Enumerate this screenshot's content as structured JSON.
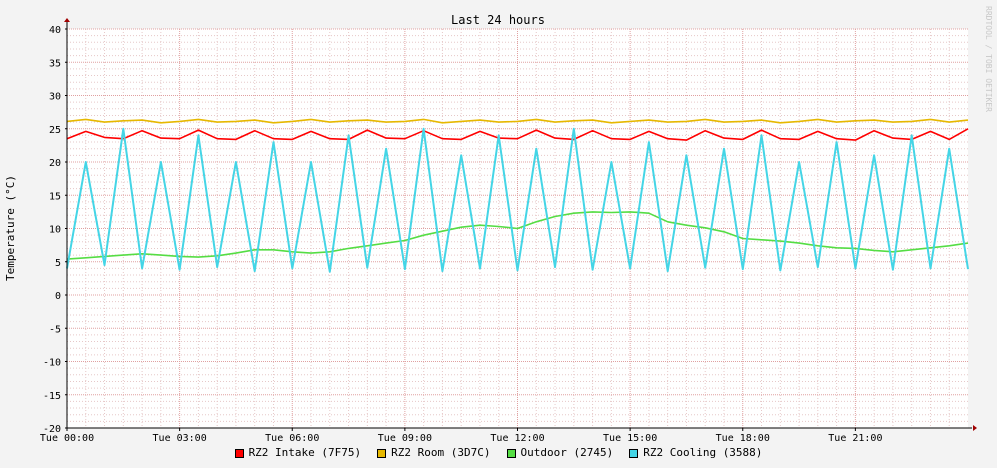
{
  "watermark": "RRDTOOL / TOBI OETIKER",
  "chart_data": {
    "type": "line",
    "title": "Last 24 hours",
    "xlabel": "",
    "ylabel": "Temperature (°C)",
    "ylim": [
      -20,
      40
    ],
    "yticks": [
      40,
      35,
      30,
      25,
      20,
      15,
      10,
      5,
      0,
      -5,
      -10,
      -15,
      -20
    ],
    "xlim": [
      0,
      24
    ],
    "xticks": [
      {
        "hour": 0,
        "label": "Tue 00:00"
      },
      {
        "hour": 3,
        "label": "Tue 03:00"
      },
      {
        "hour": 6,
        "label": "Tue 06:00"
      },
      {
        "hour": 9,
        "label": "Tue 09:00"
      },
      {
        "hour": 12,
        "label": "Tue 12:00"
      },
      {
        "hour": 15,
        "label": "Tue 15:00"
      },
      {
        "hour": 18,
        "label": "Tue 18:00"
      },
      {
        "hour": 21,
        "label": "Tue 21:00"
      }
    ],
    "grid": true,
    "legend_position": "bottom",
    "x": [
      0,
      0.5,
      1,
      1.5,
      2,
      2.5,
      3,
      3.5,
      4,
      4.5,
      5,
      5.5,
      6,
      6.5,
      7,
      7.5,
      8,
      8.5,
      9,
      9.5,
      10,
      10.5,
      11,
      11.5,
      12,
      12.5,
      13,
      13.5,
      14,
      14.5,
      15,
      15.5,
      16,
      16.5,
      17,
      17.5,
      18,
      18.5,
      19,
      19.5,
      20,
      20.5,
      21,
      21.5,
      22,
      22.5,
      23,
      23.5,
      24
    ],
    "series": [
      {
        "name": "RZ2 Intake (7F75)",
        "color": "#ff0000",
        "values": [
          23.5,
          24.6,
          23.7,
          23.5,
          24.7,
          23.6,
          23.5,
          24.8,
          23.5,
          23.4,
          24.7,
          23.5,
          23.4,
          24.6,
          23.5,
          23.4,
          24.8,
          23.6,
          23.5,
          24.7,
          23.5,
          23.4,
          24.6,
          23.6,
          23.5,
          24.8,
          23.6,
          23.4,
          24.7,
          23.5,
          23.4,
          24.6,
          23.5,
          23.3,
          24.7,
          23.6,
          23.4,
          24.8,
          23.5,
          23.4,
          24.6,
          23.5,
          23.3,
          24.7,
          23.6,
          23.4,
          24.6,
          23.4,
          25.0
        ]
      },
      {
        "name": "RZ2 Room (3D7C)",
        "color": "#e6b800",
        "values": [
          26.1,
          26.4,
          26.0,
          26.2,
          26.3,
          25.9,
          26.1,
          26.4,
          26.0,
          26.1,
          26.3,
          25.9,
          26.1,
          26.4,
          26.0,
          26.2,
          26.3,
          26.0,
          26.1,
          26.4,
          25.9,
          26.1,
          26.3,
          26.0,
          26.1,
          26.4,
          26.0,
          26.2,
          26.3,
          25.9,
          26.1,
          26.3,
          26.0,
          26.1,
          26.4,
          26.0,
          26.1,
          26.3,
          25.9,
          26.1,
          26.4,
          26.0,
          26.2,
          26.3,
          26.0,
          26.1,
          26.4,
          26.0,
          26.3
        ]
      },
      {
        "name": "Outdoor (2745)",
        "color": "#55dd44",
        "values": [
          5.4,
          5.6,
          5.8,
          6.0,
          6.2,
          6.0,
          5.8,
          5.7,
          5.9,
          6.3,
          6.8,
          6.8,
          6.5,
          6.3,
          6.5,
          7.0,
          7.4,
          7.8,
          8.2,
          9.0,
          9.6,
          10.2,
          10.5,
          10.3,
          10.0,
          11.0,
          11.8,
          12.3,
          12.5,
          12.4,
          12.5,
          12.3,
          11.0,
          10.5,
          10.1,
          9.5,
          8.5,
          8.3,
          8.1,
          7.8,
          7.4,
          7.1,
          7.0,
          6.7,
          6.5,
          6.8,
          7.1,
          7.4,
          7.8
        ]
      },
      {
        "name": "RZ2 Cooling (3588)",
        "color": "#44d5e6",
        "values": [
          4.0,
          20.0,
          4.5,
          25.0,
          4.0,
          20.0,
          3.8,
          24.0,
          4.2,
          20.0,
          3.6,
          23.0,
          4.0,
          20.0,
          3.5,
          24.0,
          4.1,
          22.0,
          3.9,
          25.0,
          3.6,
          21.0,
          4.0,
          24.0,
          3.7,
          22.0,
          4.2,
          25.0,
          3.8,
          20.0,
          4.0,
          23.0,
          3.6,
          21.0,
          4.1,
          22.0,
          3.9,
          24.0,
          3.7,
          20.0,
          4.2,
          23.0,
          4.0,
          21.0,
          3.8,
          24.0,
          4.0,
          22.0,
          3.9
        ]
      }
    ]
  }
}
